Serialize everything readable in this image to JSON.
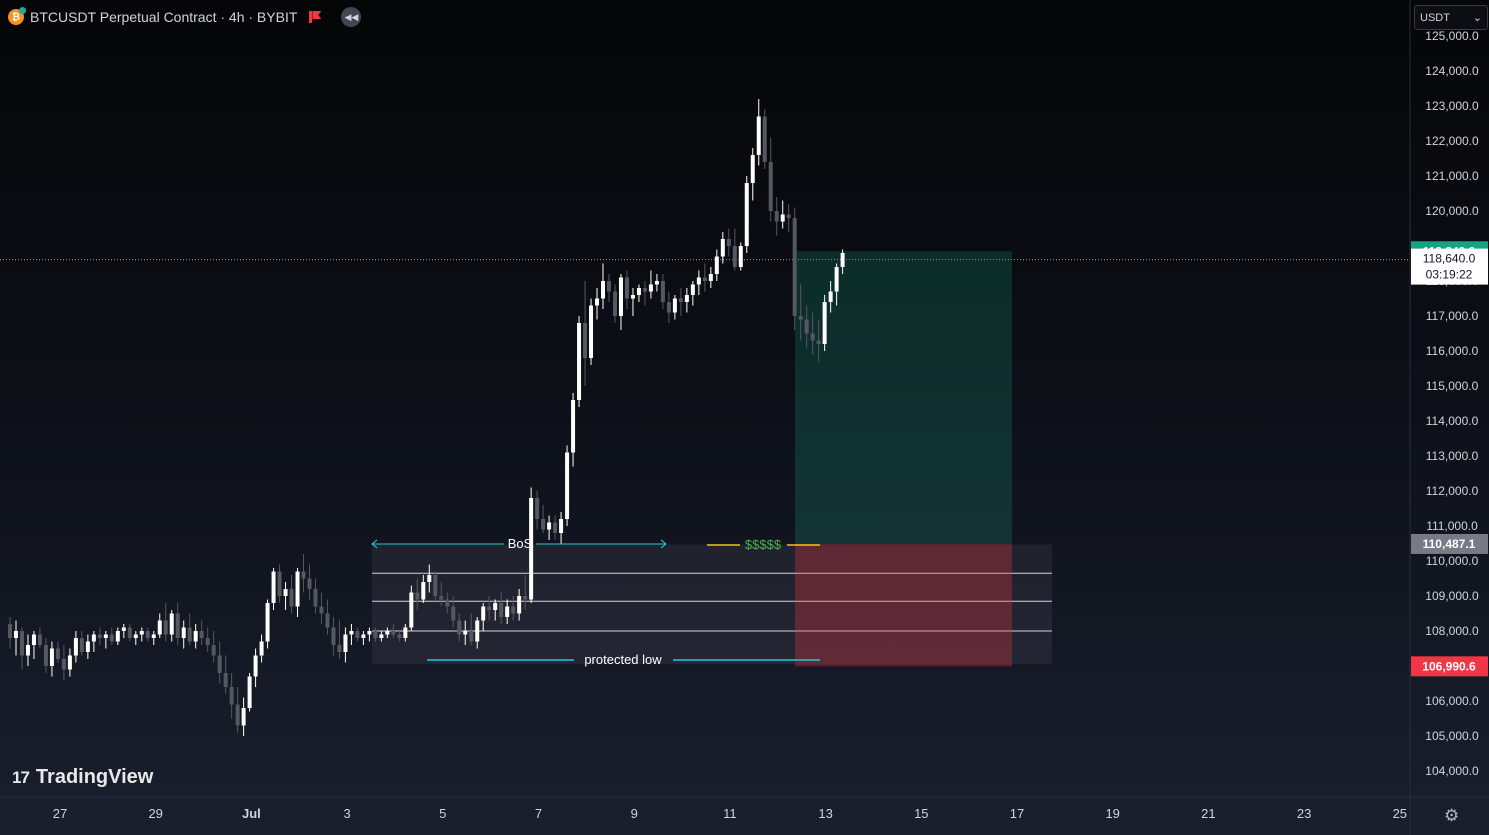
{
  "header": {
    "coin_letter": "₿",
    "symbol_title": "BTCUSDT Perpetual Contract · 4h · BYBIT",
    "rewind_glyph": "◀◀"
  },
  "currency_selector": {
    "label": "USDT",
    "caret": "⌄"
  },
  "branding": {
    "logo_mark": "17",
    "name": "TradingView"
  },
  "settings_glyph": "⚙",
  "colors": {
    "bull": "#ffffff",
    "bear": "#555860",
    "target": "#16a37f",
    "stop": "#f23645",
    "bos": "#26c6da",
    "liquidity": "#f0c419",
    "liquidity_text": "#4caf50",
    "axis_text": "#d1d4dc"
  },
  "chart_data": {
    "type": "candlestick",
    "symbol": "BTCUSDT",
    "interval": "4h",
    "exchange": "BYBIT",
    "ylim": [
      103500,
      125300
    ],
    "y_ticks": [
      104000,
      105000,
      106000,
      107000,
      108000,
      109000,
      110000,
      111000,
      112000,
      113000,
      114000,
      115000,
      116000,
      117000,
      118000,
      119000,
      120000,
      121000,
      122000,
      123000,
      124000,
      125000
    ],
    "y_tick_labels": [
      "104,000.0",
      "105,000.0",
      "106,000.0",
      "107,000.0",
      "108,000.0",
      "109,000.0",
      "110,000.0",
      "111,000.0",
      "112,000.0",
      "113,000.0",
      "114,000.0",
      "115,000.0",
      "116,000.0",
      "117,000.0",
      "118,000.0",
      "119,000.0",
      "120,000.0",
      "121,000.0",
      "122,000.0",
      "123,000.0",
      "124,000.0",
      "125,000.0"
    ],
    "x_range": [
      "Jun 25",
      "Jul 25"
    ],
    "x_tick_labels": [
      "27",
      "29",
      "Jul",
      "3",
      "5",
      "7",
      "9",
      "11",
      "13",
      "15",
      "17",
      "19",
      "21",
      "23",
      "25"
    ],
    "candle_range": {
      "first_bar_day": 0.0,
      "bar_hours": 4
    },
    "candles_ohlc": [
      [
        108200,
        108400,
        107500,
        107800
      ],
      [
        107800,
        108300,
        107300,
        108000
      ],
      [
        108000,
        108100,
        106900,
        107300
      ],
      [
        107300,
        107900,
        107000,
        107600
      ],
      [
        107600,
        108000,
        107200,
        107900
      ],
      [
        107900,
        108100,
        107500,
        107600
      ],
      [
        107600,
        107800,
        106800,
        107000
      ],
      [
        107000,
        107700,
        106700,
        107500
      ],
      [
        107500,
        107700,
        107100,
        107200
      ],
      [
        107200,
        107600,
        106600,
        106900
      ],
      [
        106900,
        107500,
        106700,
        107300
      ],
      [
        107300,
        108000,
        107100,
        107800
      ],
      [
        107800,
        108000,
        107300,
        107400
      ],
      [
        107400,
        107900,
        107200,
        107700
      ],
      [
        107700,
        108000,
        107400,
        107900
      ],
      [
        107900,
        108100,
        107600,
        107800
      ],
      [
        107800,
        108000,
        107500,
        107900
      ],
      [
        107900,
        108100,
        107600,
        107700
      ],
      [
        107700,
        108100,
        107600,
        108000
      ],
      [
        108000,
        108200,
        107800,
        108100
      ],
      [
        108100,
        108200,
        107700,
        107800
      ],
      [
        107800,
        108000,
        107600,
        107900
      ],
      [
        107900,
        108100,
        107700,
        108000
      ],
      [
        108000,
        108100,
        107700,
        107800
      ],
      [
        107800,
        108000,
        107600,
        107900
      ],
      [
        107900,
        108500,
        107800,
        108300
      ],
      [
        108300,
        108800,
        107700,
        107900
      ],
      [
        107900,
        108600,
        107700,
        108500
      ],
      [
        108500,
        108800,
        107600,
        107800
      ],
      [
        107800,
        108300,
        107500,
        108100
      ],
      [
        108100,
        108500,
        107600,
        107700
      ],
      [
        107700,
        108200,
        107500,
        108000
      ],
      [
        108000,
        108300,
        107600,
        107800
      ],
      [
        107800,
        108100,
        107400,
        107600
      ],
      [
        107600,
        108000,
        107100,
        107300
      ],
      [
        107300,
        107700,
        106500,
        106800
      ],
      [
        106800,
        107300,
        106200,
        106400
      ],
      [
        106400,
        106800,
        105500,
        105900
      ],
      [
        105900,
        106400,
        105100,
        105300
      ],
      [
        105300,
        106100,
        105000,
        105800
      ],
      [
        105800,
        106800,
        105700,
        106700
      ],
      [
        106700,
        107500,
        106400,
        107300
      ],
      [
        107300,
        107900,
        107100,
        107700
      ],
      [
        107700,
        108900,
        107500,
        108800
      ],
      [
        108800,
        109800,
        108600,
        109700
      ],
      [
        109700,
        109900,
        108800,
        109000
      ],
      [
        109000,
        109400,
        108600,
        109200
      ],
      [
        109200,
        109600,
        108500,
        108700
      ],
      [
        108700,
        109800,
        108400,
        109700
      ],
      [
        109700,
        110200,
        109100,
        109500
      ],
      [
        109500,
        109900,
        108900,
        109200
      ],
      [
        109200,
        109500,
        108500,
        108700
      ],
      [
        108700,
        109100,
        108200,
        108500
      ],
      [
        108500,
        108900,
        107900,
        108100
      ],
      [
        108100,
        108400,
        107300,
        107600
      ],
      [
        107600,
        108300,
        107200,
        107400
      ],
      [
        107400,
        108100,
        107100,
        107900
      ],
      [
        107900,
        108200,
        107600,
        108000
      ],
      [
        108000,
        108100,
        107700,
        107800
      ],
      [
        107800,
        108000,
        107600,
        107900
      ],
      [
        107900,
        108100,
        107700,
        108000
      ],
      [
        108000,
        108100,
        107700,
        107800
      ],
      [
        107800,
        108000,
        107700,
        107900
      ],
      [
        107900,
        108100,
        107800,
        108000
      ],
      [
        108000,
        108200,
        107800,
        107900
      ],
      [
        107900,
        108000,
        107700,
        107800
      ],
      [
        107800,
        108200,
        107700,
        108100
      ],
      [
        108100,
        109300,
        108000,
        109100
      ],
      [
        109100,
        109500,
        108600,
        108900
      ],
      [
        108900,
        109600,
        108800,
        109400
      ],
      [
        109400,
        109900,
        109100,
        109600
      ],
      [
        109600,
        109700,
        108800,
        109000
      ],
      [
        109000,
        109400,
        108700,
        108900
      ],
      [
        108900,
        109100,
        108500,
        108700
      ],
      [
        108700,
        109000,
        108100,
        108300
      ],
      [
        108300,
        108500,
        107700,
        107900
      ],
      [
        107900,
        108300,
        107600,
        108000
      ],
      [
        108000,
        108500,
        107600,
        107700
      ],
      [
        107700,
        108400,
        107500,
        108300
      ],
      [
        108300,
        108800,
        108000,
        108700
      ],
      [
        108700,
        109000,
        108300,
        108600
      ],
      [
        108600,
        108900,
        108300,
        108800
      ],
      [
        108800,
        109100,
        108200,
        108400
      ],
      [
        108400,
        108900,
        108200,
        108700
      ],
      [
        108700,
        109000,
        108300,
        108500
      ],
      [
        108500,
        109200,
        108300,
        109000
      ],
      [
        109000,
        109600,
        108600,
        108900
      ],
      [
        108900,
        112100,
        108800,
        111800
      ],
      [
        111800,
        112000,
        110900,
        111200
      ],
      [
        111200,
        111600,
        110800,
        110900
      ],
      [
        110900,
        111300,
        110600,
        111100
      ],
      [
        111100,
        111300,
        110600,
        110800
      ],
      [
        110800,
        111400,
        110500,
        111200
      ],
      [
        111200,
        113300,
        111000,
        113100
      ],
      [
        113100,
        114800,
        112700,
        114600
      ],
      [
        114600,
        117000,
        114400,
        116800
      ],
      [
        116800,
        118000,
        115000,
        115800
      ],
      [
        115800,
        117500,
        115600,
        117300
      ],
      [
        117300,
        117800,
        116900,
        117500
      ],
      [
        117500,
        118500,
        117200,
        118000
      ],
      [
        118000,
        118200,
        117400,
        117700
      ],
      [
        117700,
        117900,
        116800,
        117000
      ],
      [
        117000,
        118200,
        116600,
        118100
      ],
      [
        118100,
        118300,
        117200,
        117500
      ],
      [
        117500,
        117800,
        117000,
        117600
      ],
      [
        117600,
        117900,
        117400,
        117800
      ],
      [
        117800,
        118000,
        117300,
        117700
      ],
      [
        117700,
        118300,
        117500,
        117900
      ],
      [
        117900,
        118200,
        117700,
        118000
      ],
      [
        118000,
        118200,
        117200,
        117400
      ],
      [
        117400,
        117700,
        116800,
        117100
      ],
      [
        117100,
        117600,
        116900,
        117500
      ],
      [
        117500,
        117800,
        117000,
        117400
      ],
      [
        117400,
        117800,
        117100,
        117600
      ],
      [
        117600,
        118000,
        117300,
        117900
      ],
      [
        117900,
        118300,
        117600,
        118100
      ],
      [
        118100,
        118500,
        117700,
        118000
      ],
      [
        118000,
        118400,
        117800,
        118200
      ],
      [
        118200,
        118900,
        118000,
        118700
      ],
      [
        118700,
        119400,
        118500,
        119200
      ],
      [
        119200,
        119500,
        118700,
        119000
      ],
      [
        119000,
        119500,
        118300,
        118400
      ],
      [
        118400,
        119100,
        118300,
        119000
      ],
      [
        119000,
        121000,
        118800,
        120800
      ],
      [
        120800,
        121800,
        120300,
        121600
      ],
      [
        121600,
        123200,
        121300,
        122700
      ],
      [
        122700,
        122900,
        121200,
        121400
      ],
      [
        121400,
        122100,
        119700,
        120000
      ],
      [
        120000,
        120400,
        119300,
        119700
      ],
      [
        119700,
        120300,
        119500,
        119900
      ],
      [
        119900,
        120200,
        119400,
        119800
      ],
      [
        119800,
        120100,
        116600,
        117000
      ],
      [
        117000,
        117900,
        116300,
        116900
      ],
      [
        116900,
        117300,
        116100,
        116500
      ],
      [
        116500,
        117100,
        115900,
        116300
      ],
      [
        116300,
        116900,
        115700,
        116200
      ],
      [
        116200,
        117600,
        116000,
        117400
      ],
      [
        117400,
        118000,
        117100,
        117700
      ],
      [
        117700,
        118500,
        117300,
        118400
      ],
      [
        118400,
        118900,
        118200,
        118800
      ]
    ],
    "drawings": {
      "bos": {
        "label": "BoS",
        "price": 110487.1,
        "start_day": 8.6,
        "end_day": 15.6
      },
      "protected_low": {
        "label": "protected low",
        "price": 107050,
        "start_day": 9.8,
        "end_day": 17.9
      },
      "liquidity": {
        "label": "$$$$$",
        "price": 110487.1,
        "start_day": 16.5,
        "end_day": 19.6
      },
      "range_box": {
        "top": 110470,
        "bottom": 107050,
        "lines": [
          109650,
          108850,
          108000
        ],
        "start_day": 8.6,
        "end_day": 25.7
      },
      "position": {
        "entry": 110487.1,
        "target": 118849.9,
        "stop": 106990.6,
        "start_day": 19.6,
        "end_day": 24.6
      }
    },
    "price_labels": {
      "target": "118,849.9",
      "current_price": "118,640.0",
      "countdown": "03:19:22",
      "entry": "110,487.1",
      "stop": "106,990.6"
    },
    "current_price": 118640.0
  }
}
